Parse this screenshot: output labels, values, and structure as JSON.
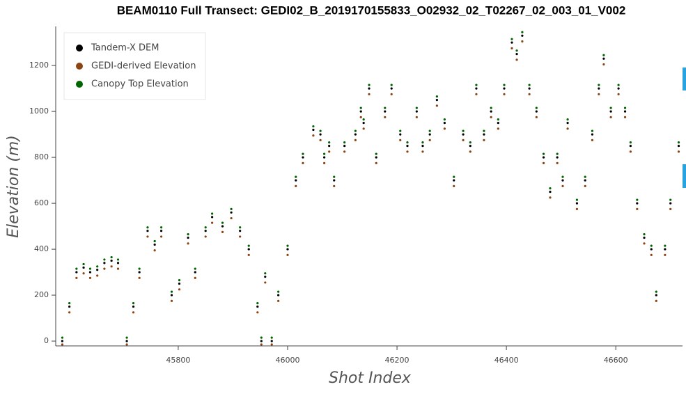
{
  "chart_data": {
    "type": "scatter",
    "title": "BEAM0110 Full Transect: GEDI02_B_2019170155833_O02932_02_T02267_02_003_01_V002",
    "x_label": "Shot Index",
    "y_label": "Elevation (m)",
    "xlim": [
      45576,
      46722
    ],
    "ylim": [
      -21,
      1364
    ],
    "xticks": [
      45800,
      46000,
      46200,
      46400,
      46600
    ],
    "yticks": [
      0,
      200,
      400,
      600,
      800,
      1000,
      1200
    ],
    "legend": "top-left",
    "x": [
      45588,
      45601,
      45614,
      45627,
      45639,
      45652,
      45665,
      45678,
      45690,
      45706,
      45718,
      45729,
      45744,
      45757,
      45769,
      45788,
      45802,
      45818,
      45831,
      45850,
      45862,
      45881,
      45897,
      45913,
      45929,
      45945,
      45952,
      45959,
      45971,
      45983,
      46000,
      46015,
      46028,
      46047,
      46060,
      46067,
      46076,
      46085,
      46104,
      46124,
      46134,
      46139,
      46149,
      46162,
      46178,
      46190,
      46206,
      46219,
      46236,
      46247,
      46260,
      46273,
      46287,
      46304,
      46321,
      46334,
      46345,
      46359,
      46372,
      46385,
      46396,
      46410,
      46419,
      46429,
      46442,
      46455,
      46468,
      46480,
      46493,
      46503,
      46512,
      46529,
      46544,
      46557,
      46569,
      46578,
      46591,
      46605,
      46617,
      46627,
      46639,
      46652,
      46665,
      46674,
      46690,
      46700,
      46715
    ],
    "series": [
      {
        "name": "Tandem-X DEM",
        "color": "#000000",
        "values": [
          0,
          150,
          300,
          320,
          300,
          310,
          340,
          350,
          340,
          0,
          150,
          300,
          480,
          420,
          480,
          200,
          250,
          450,
          300,
          480,
          540,
          500,
          560,
          480,
          400,
          150,
          0,
          280,
          0,
          200,
          400,
          700,
          800,
          920,
          900,
          800,
          850,
          700,
          850,
          900,
          1000,
          950,
          1100,
          800,
          1000,
          1100,
          900,
          850,
          1000,
          850,
          900,
          1050,
          950,
          700,
          900,
          850,
          1100,
          900,
          1000,
          950,
          1100,
          1300,
          1250,
          1330,
          1100,
          1000,
          800,
          650,
          800,
          700,
          950,
          600,
          700,
          900,
          1100,
          1230,
          1000,
          1100,
          1000,
          850,
          600,
          450,
          400,
          200,
          400,
          600,
          850
        ]
      },
      {
        "name": "GEDI-derived Elevation",
        "color": "#8b4513",
        "values": [
          -15,
          125,
          275,
          295,
          275,
          285,
          315,
          325,
          315,
          -15,
          125,
          275,
          455,
          395,
          455,
          175,
          225,
          425,
          275,
          455,
          515,
          475,
          535,
          455,
          375,
          125,
          -15,
          255,
          -15,
          175,
          375,
          675,
          775,
          895,
          875,
          775,
          825,
          675,
          825,
          875,
          975,
          925,
          1075,
          775,
          975,
          1075,
          875,
          825,
          975,
          825,
          875,
          1025,
          925,
          675,
          875,
          825,
          1075,
          875,
          975,
          925,
          1075,
          1275,
          1225,
          1305,
          1075,
          975,
          775,
          625,
          775,
          675,
          925,
          575,
          675,
          875,
          1075,
          1205,
          975,
          1075,
          975,
          825,
          575,
          425,
          375,
          175,
          375,
          575,
          825
        ]
      },
      {
        "name": "Canopy Top Elevation",
        "color": "#006400",
        "values": [
          15,
          165,
          315,
          335,
          315,
          325,
          355,
          365,
          355,
          15,
          165,
          315,
          495,
          435,
          495,
          215,
          265,
          465,
          315,
          495,
          555,
          515,
          575,
          495,
          415,
          165,
          15,
          295,
          15,
          215,
          415,
          715,
          815,
          935,
          915,
          815,
          865,
          715,
          865,
          915,
          1015,
          965,
          1115,
          815,
          1015,
          1115,
          915,
          865,
          1015,
          865,
          915,
          1065,
          965,
          715,
          915,
          865,
          1115,
          915,
          1015,
          965,
          1115,
          1315,
          1265,
          1345,
          1115,
          1015,
          815,
          665,
          815,
          715,
          965,
          615,
          715,
          915,
          1115,
          1245,
          1015,
          1115,
          1015,
          865,
          615,
          465,
          415,
          215,
          415,
          615,
          865
        ]
      }
    ]
  }
}
